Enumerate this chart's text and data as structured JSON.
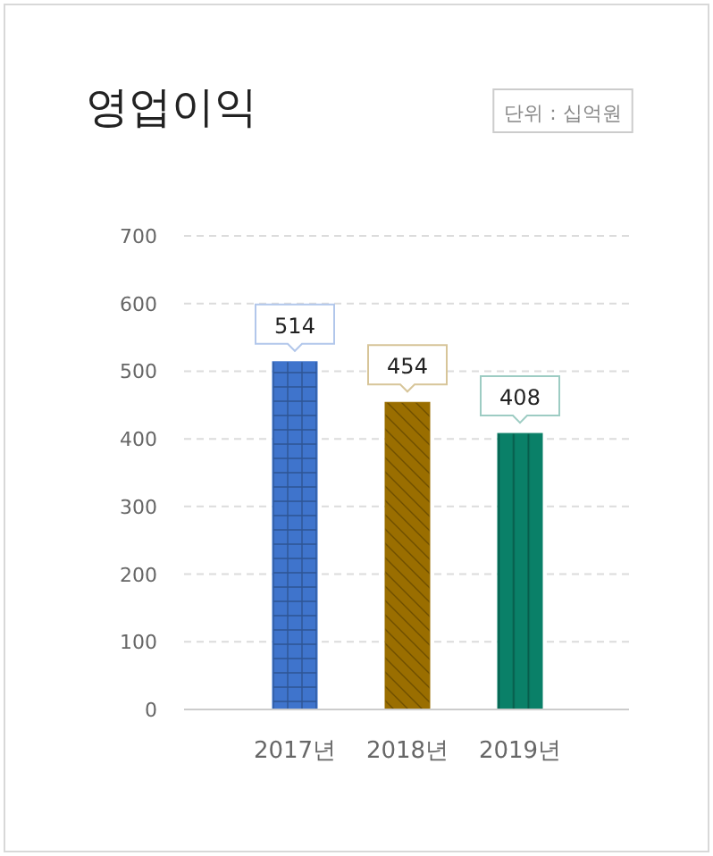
{
  "chart_data": {
    "type": "bar",
    "title": "영업이익",
    "annotations": [
      "단위 : 십억원"
    ],
    "categories": [
      "2017년",
      "2018년",
      "2019년"
    ],
    "values": [
      514,
      454,
      408
    ],
    "colors": [
      "#3f74cc",
      "#9a6e00",
      "#0a8068"
    ],
    "ylim": [
      0,
      700
    ],
    "yticks": [
      0,
      100,
      200,
      300,
      400,
      500,
      600,
      700
    ],
    "grid": "y",
    "data_labels": true
  }
}
